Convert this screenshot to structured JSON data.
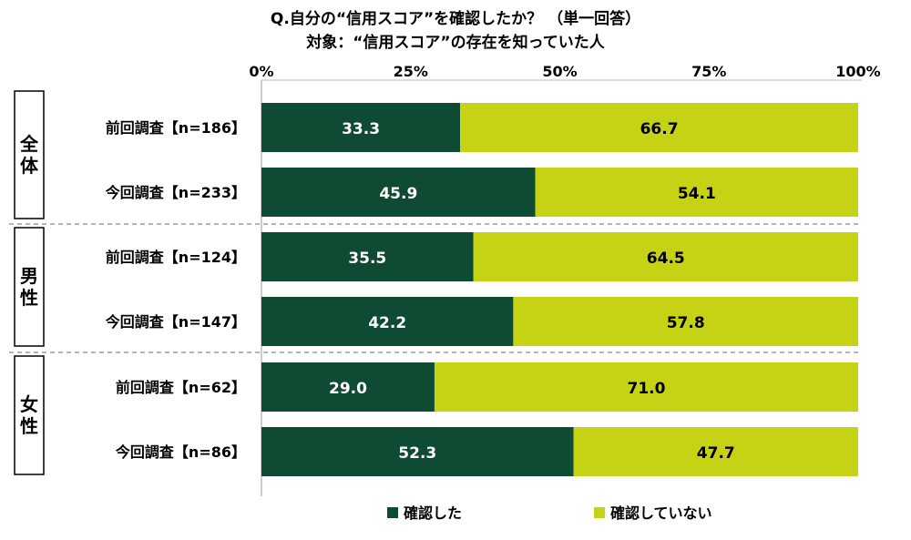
{
  "chart_data": {
    "type": "bar",
    "stacked": true,
    "orientation": "horizontal",
    "title": "Q.自分の“信用スコア”を確認したか？ （単一回答）",
    "subtitle": "対象：“信用スコア”の存在を知っていた人",
    "xlim": [
      0,
      100
    ],
    "x_ticks": [
      "0%",
      "25%",
      "50%",
      "75%",
      "100%"
    ],
    "groups": [
      {
        "name": "全体",
        "rows": [
          {
            "label": "前回調査【n=186】",
            "values": [
              33.3,
              66.7
            ]
          },
          {
            "label": "今回調査【n=233】",
            "values": [
              45.9,
              54.1
            ]
          }
        ]
      },
      {
        "name": "男性",
        "rows": [
          {
            "label": "前回調査【n=124】",
            "values": [
              35.5,
              64.5
            ]
          },
          {
            "label": "今回調査【n=147】",
            "values": [
              42.2,
              57.8
            ]
          }
        ]
      },
      {
        "name": "女性",
        "rows": [
          {
            "label": "前回調査【n=62】",
            "values": [
              29.0,
              71.0
            ]
          },
          {
            "label": "今回調査【n=86】",
            "values": [
              52.3,
              47.7
            ]
          }
        ]
      }
    ],
    "series": [
      {
        "name": "確認した",
        "color": "#0f4a32",
        "label_color": "#ffffff"
      },
      {
        "name": "確認していない",
        "color": "#c6d314",
        "label_color": "#000000"
      }
    ],
    "legend_position": "bottom"
  }
}
